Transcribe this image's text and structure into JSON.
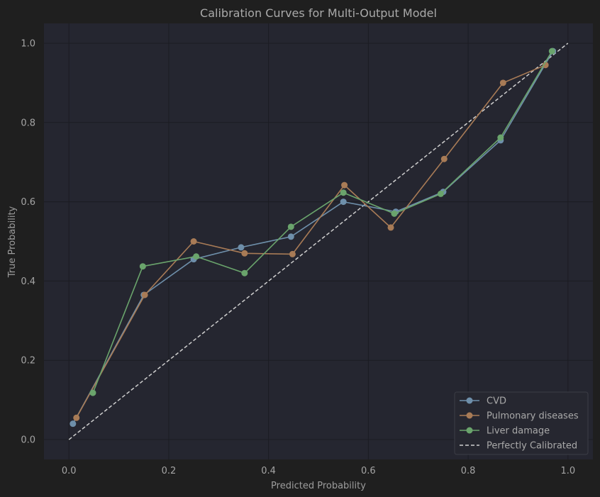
{
  "chart_data": {
    "type": "line",
    "title": "Calibration Curves for Multi-Output Model",
    "xlabel": "Predicted Probability",
    "ylabel": "True Probability",
    "xlim": [
      -0.05,
      1.05
    ],
    "ylim": [
      -0.05,
      1.05
    ],
    "xticks": [
      0.0,
      0.2,
      0.4,
      0.6,
      0.8,
      1.0
    ],
    "yticks": [
      0.0,
      0.2,
      0.4,
      0.6,
      0.8,
      1.0
    ],
    "xtick_labels": [
      "0.0",
      "0.2",
      "0.4",
      "0.6",
      "0.8",
      "1.0"
    ],
    "ytick_labels": [
      "0.0",
      "0.2",
      "0.4",
      "0.6",
      "0.8",
      "1.0"
    ],
    "grid": true,
    "legend_position": "bottom-right",
    "series": [
      {
        "name": "CVD",
        "color": "#6e8faa",
        "x": [
          0.008,
          0.15,
          0.25,
          0.345,
          0.445,
          0.55,
          0.655,
          0.75,
          0.865,
          0.97
        ],
        "y": [
          0.04,
          0.365,
          0.455,
          0.485,
          0.512,
          0.6,
          0.575,
          0.625,
          0.755,
          0.98
        ]
      },
      {
        "name": "Pulmonary diseases",
        "color": "#a87b56",
        "x": [
          0.015,
          0.152,
          0.25,
          0.352,
          0.448,
          0.552,
          0.645,
          0.752,
          0.87,
          0.955
        ],
        "y": [
          0.055,
          0.365,
          0.5,
          0.47,
          0.468,
          0.642,
          0.535,
          0.708,
          0.9,
          0.945
        ]
      },
      {
        "name": "Liver damage",
        "color": "#6aa46c",
        "x": [
          0.048,
          0.148,
          0.255,
          0.352,
          0.445,
          0.55,
          0.652,
          0.745,
          0.865,
          0.968
        ],
        "y": [
          0.118,
          0.437,
          0.462,
          0.42,
          0.537,
          0.623,
          0.57,
          0.62,
          0.762,
          0.98
        ]
      }
    ],
    "reference_line": {
      "name": "Perfectly Calibrated",
      "color": "#cfcfcf",
      "x": [
        0,
        1
      ],
      "y": [
        0,
        1
      ]
    }
  }
}
